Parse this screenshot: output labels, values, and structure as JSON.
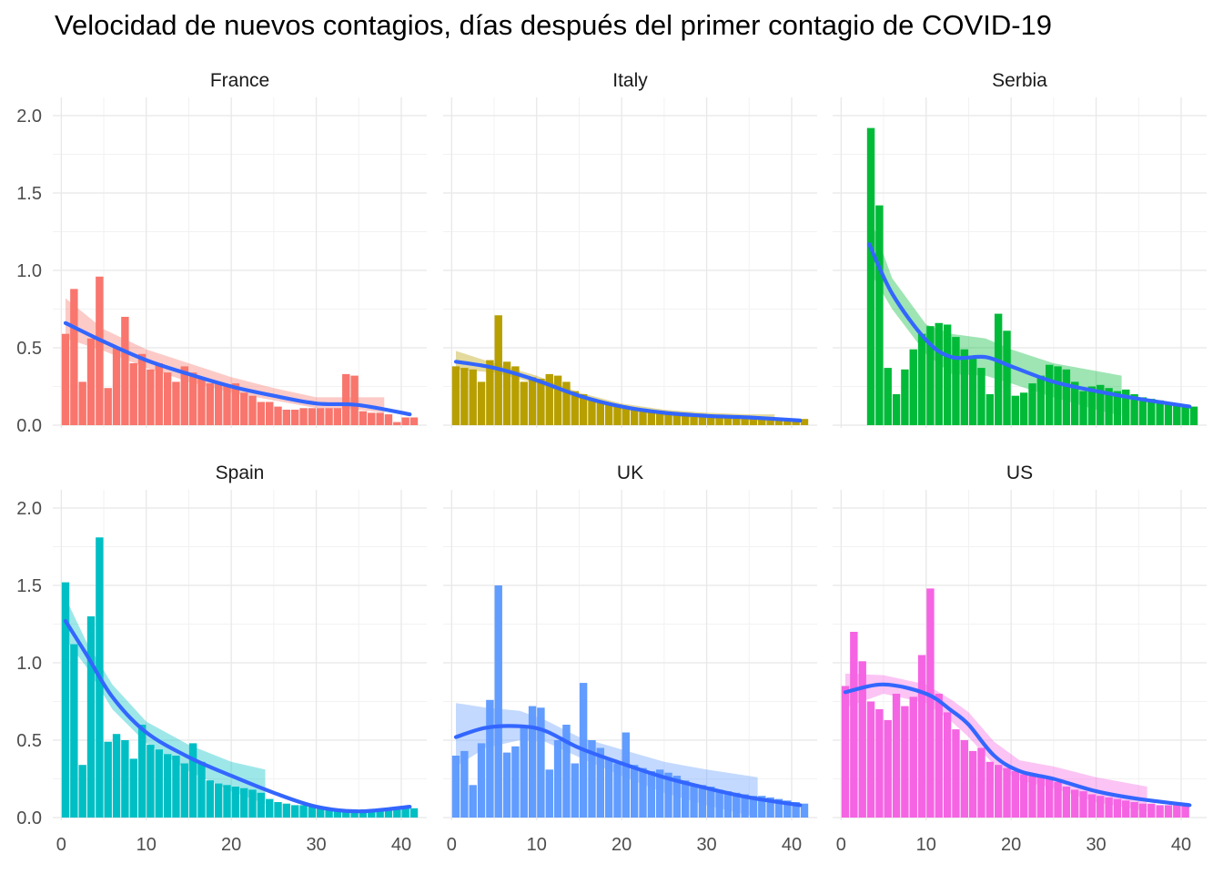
{
  "chart_data": {
    "type": "bar",
    "title": "Velocidad de nuevos contagios, días después del primer contagio de COVID-19",
    "xlabel": "",
    "ylabel": "",
    "xlim": [
      -1,
      43
    ],
    "ylim": [
      0,
      2.0
    ],
    "x_ticks": [
      0,
      10,
      20,
      30,
      40
    ],
    "y_ticks": [
      0.0,
      0.5,
      1.0,
      1.5,
      2.0
    ],
    "y_tick_labels": [
      "0.0",
      "0.5",
      "1.0",
      "1.5",
      "2.0"
    ],
    "x_tick_labels": [
      "0",
      "10",
      "20",
      "30",
      "40"
    ],
    "grid": true,
    "smooth_line_color": "#3366FF",
    "panels": [
      {
        "name": "France",
        "color": "#F8766D",
        "x_start": 0,
        "values": [
          0.59,
          0.88,
          0.28,
          0.56,
          0.96,
          0.24,
          0.5,
          0.7,
          0.4,
          0.46,
          0.36,
          0.4,
          0.34,
          0.28,
          0.38,
          0.34,
          0.3,
          0.27,
          0.28,
          0.26,
          0.27,
          0.21,
          0.19,
          0.15,
          0.15,
          0.12,
          0.1,
          0.1,
          0.11,
          0.11,
          0.11,
          0.11,
          0.11,
          0.33,
          0.32,
          0.09,
          0.08,
          0.08,
          0.07,
          0.02,
          0.05,
          0.05
        ],
        "smooth": [
          [
            0.5,
            0.66
          ],
          [
            5,
            0.54
          ],
          [
            10,
            0.42
          ],
          [
            15,
            0.33
          ],
          [
            20,
            0.25
          ],
          [
            25,
            0.19
          ],
          [
            30,
            0.14
          ],
          [
            35,
            0.13
          ],
          [
            41,
            0.07
          ]
        ],
        "band": [
          [
            0.5,
            0.56,
            0.82
          ],
          [
            5,
            0.48,
            0.62
          ],
          [
            10,
            0.37,
            0.49
          ],
          [
            15,
            0.28,
            0.4
          ],
          [
            20,
            0.21,
            0.31
          ],
          [
            25,
            0.16,
            0.24
          ],
          [
            30,
            0.11,
            0.18
          ],
          [
            35,
            0.1,
            0.18
          ],
          [
            38,
            0.08,
            0.18
          ]
        ]
      },
      {
        "name": "Italy",
        "color": "#B79F00",
        "x_start": 0,
        "values": [
          0.38,
          0.37,
          0.36,
          0.28,
          0.42,
          0.71,
          0.41,
          0.38,
          0.28,
          0.31,
          0.3,
          0.33,
          0.32,
          0.28,
          0.22,
          0.2,
          0.17,
          0.15,
          0.14,
          0.12,
          0.11,
          0.1,
          0.1,
          0.09,
          0.08,
          0.08,
          0.07,
          0.07,
          0.07,
          0.06,
          0.06,
          0.06,
          0.05,
          0.05,
          0.05,
          0.05,
          0.04,
          0.04,
          0.04,
          0.04,
          0.04,
          0.04
        ],
        "smooth": [
          [
            0.5,
            0.41
          ],
          [
            5,
            0.37
          ],
          [
            10,
            0.29
          ],
          [
            15,
            0.19
          ],
          [
            20,
            0.12
          ],
          [
            25,
            0.08
          ],
          [
            30,
            0.06
          ],
          [
            35,
            0.05
          ],
          [
            41,
            0.03
          ]
        ],
        "band": [
          [
            0.5,
            0.36,
            0.48
          ],
          [
            5,
            0.34,
            0.4
          ],
          [
            10,
            0.27,
            0.32
          ],
          [
            15,
            0.17,
            0.21
          ],
          [
            20,
            0.1,
            0.14
          ],
          [
            25,
            0.06,
            0.1
          ],
          [
            30,
            0.04,
            0.08
          ],
          [
            35,
            0.03,
            0.07
          ],
          [
            38,
            0.02,
            0.07
          ]
        ]
      },
      {
        "name": "Serbia",
        "color": "#00BA38",
        "x_start": 3,
        "values": [
          1.92,
          1.42,
          0.37,
          0.2,
          0.36,
          0.49,
          0.59,
          0.64,
          0.66,
          0.65,
          0.57,
          0.49,
          0.44,
          0.37,
          0.2,
          0.72,
          0.61,
          0.19,
          0.21,
          0.27,
          0.32,
          0.39,
          0.38,
          0.36,
          0.28,
          0.22,
          0.25,
          0.26,
          0.24,
          0.22,
          0.23,
          0.2,
          0.18,
          0.17,
          0.16,
          0.15,
          0.14,
          0.13,
          0.12
        ],
        "smooth": [
          [
            3.3,
            1.17
          ],
          [
            6,
            0.85
          ],
          [
            10,
            0.55
          ],
          [
            13,
            0.44
          ],
          [
            17,
            0.44
          ],
          [
            20,
            0.38
          ],
          [
            25,
            0.28
          ],
          [
            30,
            0.22
          ],
          [
            35,
            0.17
          ],
          [
            41,
            0.12
          ]
        ],
        "band": [
          [
            3.3,
            1.0,
            1.36
          ],
          [
            6,
            0.75,
            0.95
          ],
          [
            10,
            0.46,
            0.65
          ],
          [
            13,
            0.33,
            0.59
          ],
          [
            17,
            0.32,
            0.56
          ],
          [
            20,
            0.27,
            0.49
          ],
          [
            25,
            0.18,
            0.4
          ],
          [
            30,
            0.1,
            0.35
          ],
          [
            33,
            0.06,
            0.32
          ]
        ]
      },
      {
        "name": "Spain",
        "color": "#00BFC4",
        "x_start": 0,
        "values": [
          1.52,
          1.12,
          0.34,
          1.3,
          1.81,
          0.49,
          0.54,
          0.5,
          0.38,
          0.6,
          0.47,
          0.44,
          0.41,
          0.4,
          0.35,
          0.48,
          0.36,
          0.24,
          0.22,
          0.21,
          0.2,
          0.19,
          0.18,
          0.16,
          0.12,
          0.1,
          0.09,
          0.08,
          0.08,
          0.07,
          0.06,
          0.06,
          0.05,
          0.05,
          0.05,
          0.05,
          0.05,
          0.05,
          0.05,
          0.07,
          0.06,
          0.06
        ],
        "smooth": [
          [
            0.5,
            1.27
          ],
          [
            3,
            1.05
          ],
          [
            6,
            0.78
          ],
          [
            10,
            0.55
          ],
          [
            15,
            0.39
          ],
          [
            20,
            0.27
          ],
          [
            25,
            0.16
          ],
          [
            30,
            0.07
          ],
          [
            35,
            0.04
          ],
          [
            41,
            0.07
          ]
        ],
        "band": [
          [
            0.5,
            1.15,
            1.42
          ],
          [
            3,
            0.97,
            1.13
          ],
          [
            6,
            0.7,
            0.86
          ],
          [
            10,
            0.48,
            0.62
          ],
          [
            15,
            0.3,
            0.47
          ],
          [
            20,
            0.17,
            0.36
          ],
          [
            24,
            0.09,
            0.31
          ]
        ]
      },
      {
        "name": "UK",
        "color": "#619CFF",
        "x_start": 0,
        "values": [
          0.4,
          0.43,
          0.21,
          0.48,
          0.76,
          1.5,
          0.42,
          0.46,
          0.58,
          0.72,
          0.71,
          0.31,
          0.5,
          0.6,
          0.35,
          0.87,
          0.5,
          0.45,
          0.38,
          0.35,
          0.55,
          0.34,
          0.32,
          0.3,
          0.31,
          0.29,
          0.27,
          0.24,
          0.21,
          0.21,
          0.2,
          0.18,
          0.17,
          0.16,
          0.15,
          0.14,
          0.14,
          0.13,
          0.12,
          0.11,
          0.1,
          0.09
        ],
        "smooth": [
          [
            0.5,
            0.52
          ],
          [
            4,
            0.58
          ],
          [
            8,
            0.59
          ],
          [
            11,
            0.56
          ],
          [
            15,
            0.45
          ],
          [
            20,
            0.35
          ],
          [
            25,
            0.26
          ],
          [
            30,
            0.19
          ],
          [
            35,
            0.13
          ],
          [
            41,
            0.08
          ]
        ],
        "band": [
          [
            0.5,
            0.33,
            0.74
          ],
          [
            4,
            0.45,
            0.71
          ],
          [
            8,
            0.5,
            0.69
          ],
          [
            11,
            0.49,
            0.63
          ],
          [
            15,
            0.39,
            0.52
          ],
          [
            20,
            0.27,
            0.44
          ],
          [
            25,
            0.16,
            0.36
          ],
          [
            30,
            0.08,
            0.31
          ],
          [
            36,
            0.0,
            0.26
          ]
        ]
      },
      {
        "name": "US",
        "color": "#F564E3",
        "x_start": 0,
        "values": [
          0.85,
          1.2,
          1.01,
          0.75,
          0.7,
          0.63,
          0.8,
          0.72,
          0.78,
          1.05,
          1.48,
          0.8,
          0.68,
          0.57,
          0.5,
          0.43,
          0.45,
          0.36,
          0.34,
          0.32,
          0.3,
          0.28,
          0.27,
          0.26,
          0.25,
          0.23,
          0.2,
          0.18,
          0.17,
          0.15,
          0.14,
          0.13,
          0.12,
          0.11,
          0.1,
          0.09,
          0.09,
          0.08,
          0.08,
          0.08,
          0.08
        ],
        "smooth": [
          [
            0.5,
            0.81
          ],
          [
            5,
            0.86
          ],
          [
            10,
            0.8
          ],
          [
            13,
            0.69
          ],
          [
            15,
            0.6
          ],
          [
            18,
            0.4
          ],
          [
            21,
            0.3
          ],
          [
            25,
            0.25
          ],
          [
            30,
            0.17
          ],
          [
            35,
            0.12
          ],
          [
            41,
            0.08
          ]
        ],
        "band": [
          [
            0.5,
            0.71,
            0.93
          ],
          [
            5,
            0.8,
            0.92
          ],
          [
            10,
            0.74,
            0.86
          ],
          [
            13,
            0.62,
            0.76
          ],
          [
            15,
            0.52,
            0.68
          ],
          [
            18,
            0.34,
            0.49
          ],
          [
            21,
            0.24,
            0.37
          ],
          [
            25,
            0.19,
            0.33
          ],
          [
            30,
            0.1,
            0.26
          ],
          [
            36,
            0.04,
            0.2
          ]
        ]
      }
    ]
  }
}
